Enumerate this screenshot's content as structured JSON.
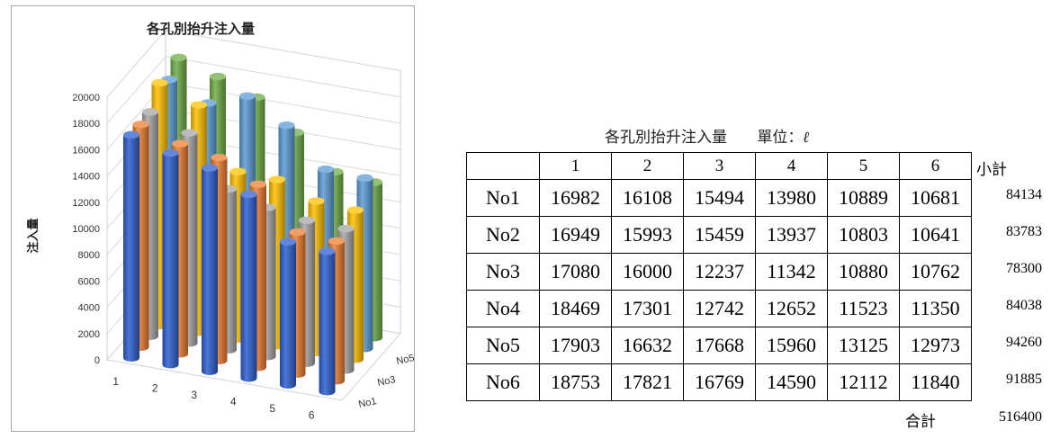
{
  "chart_data": {
    "type": "bar",
    "subtype": "3d-column",
    "title": "各孔別抬升注入量",
    "ylabel": "注入量",
    "ylim": [
      0,
      20000
    ],
    "yticks": [
      "0",
      "2000",
      "4000",
      "6000",
      "8000",
      "10000",
      "12000",
      "14000",
      "16000",
      "18000",
      "20000"
    ],
    "categories": [
      "1",
      "2",
      "3",
      "4",
      "5",
      "6"
    ],
    "depth_labels": [
      "No1",
      "No3",
      "No5"
    ],
    "series": [
      {
        "key": "No1",
        "color": "#2e5fd0",
        "values": [
          16982,
          16108,
          15494,
          13980,
          10889,
          10681
        ]
      },
      {
        "key": "No2",
        "color": "#ed7d31",
        "values": [
          16949,
          15993,
          15459,
          13937,
          10803,
          10641
        ]
      },
      {
        "key": "No3",
        "color": "#a5a5a5",
        "values": [
          17080,
          16000,
          12237,
          11342,
          10880,
          10762
        ]
      },
      {
        "key": "No4",
        "color": "#ffc000",
        "values": [
          18469,
          17301,
          12742,
          12652,
          11523,
          11350
        ]
      },
      {
        "key": "No5",
        "color": "#5b9bd5",
        "values": [
          17903,
          16632,
          17668,
          15960,
          13125,
          12973
        ]
      },
      {
        "key": "No6",
        "color": "#70ad47",
        "values": [
          18753,
          17821,
          16769,
          14590,
          12112,
          11840
        ]
      }
    ]
  },
  "table": {
    "caption": "各孔別抬升注入量",
    "unit_label": "單位：",
    "unit_symbol": "ℓ",
    "columns": [
      "1",
      "2",
      "3",
      "4",
      "5",
      "6"
    ],
    "subtotal_label": "小計",
    "rows": [
      {
        "label": "No1",
        "values": [
          "16982",
          "16108",
          "15494",
          "13980",
          "10889",
          "10681"
        ],
        "subtotal": "84134"
      },
      {
        "label": "No2",
        "values": [
          "16949",
          "15993",
          "15459",
          "13937",
          "10803",
          "10641"
        ],
        "subtotal": "83783"
      },
      {
        "label": "No3",
        "values": [
          "17080",
          "16000",
          "12237",
          "11342",
          "10880",
          "10762"
        ],
        "subtotal": "78300"
      },
      {
        "label": "No4",
        "values": [
          "18469",
          "17301",
          "12742",
          "12652",
          "11523",
          "11350"
        ],
        "subtotal": "84038"
      },
      {
        "label": "No5",
        "values": [
          "17903",
          "16632",
          "17668",
          "15960",
          "13125",
          "12973"
        ],
        "subtotal": "94260"
      },
      {
        "label": "No6",
        "values": [
          "18753",
          "17821",
          "16769",
          "14590",
          "12112",
          "11840"
        ],
        "subtotal": "91885"
      }
    ],
    "total_label": "合計",
    "total_value": "516400"
  }
}
